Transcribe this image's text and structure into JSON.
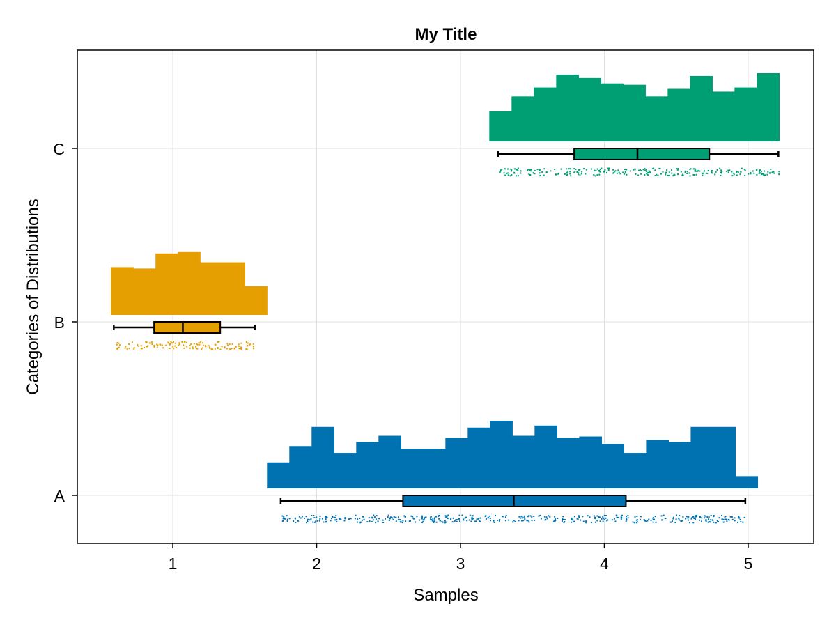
{
  "chart_data": {
    "type": "raincloud",
    "title": "My Title",
    "xlabel": "Samples",
    "ylabel": "Categories of Distributions",
    "x_ticks": [
      "1",
      "2",
      "3",
      "4",
      "5"
    ],
    "xlim": [
      0.37,
      5.47
    ],
    "ylim": [
      0.72,
      3.59
    ],
    "grid": true,
    "series": [
      {
        "category": "A",
        "color": "#0072b2",
        "histogram": {
          "bin_start": 1.655,
          "bin_width": 0.155,
          "heights": [
            0.38,
            0.62,
            0.9,
            0.52,
            0.68,
            0.77,
            0.58,
            0.58,
            0.74,
            0.89,
            0.99,
            0.77,
            0.92,
            0.74,
            0.76,
            0.65,
            0.52,
            0.71,
            0.68,
            0.9,
            0.9,
            0.18
          ]
        },
        "boxplot": {
          "min": 1.75,
          "q1": 2.6,
          "median": 3.37,
          "q3": 4.15,
          "max": 4.98
        }
      },
      {
        "category": "B",
        "color": "#e69f00",
        "histogram": {
          "bin_start": 0.57,
          "bin_width": 0.155,
          "heights": [
            0.7,
            0.68,
            0.9,
            0.92,
            0.77,
            0.77,
            0.42
          ]
        },
        "boxplot": {
          "min": 0.59,
          "q1": 0.87,
          "median": 1.07,
          "q3": 1.33,
          "max": 1.57
        }
      },
      {
        "category": "C",
        "color": "#009e73",
        "histogram": {
          "bin_start": 3.2,
          "bin_width": 0.155,
          "heights": [
            0.44,
            0.66,
            0.79,
            0.98,
            0.93,
            0.85,
            0.83,
            0.66,
            0.77,
            0.96,
            0.73,
            0.79,
            1.0
          ]
        },
        "boxplot": {
          "min": 3.26,
          "q1": 3.79,
          "median": 4.23,
          "q3": 4.73,
          "max": 5.21
        }
      }
    ]
  }
}
